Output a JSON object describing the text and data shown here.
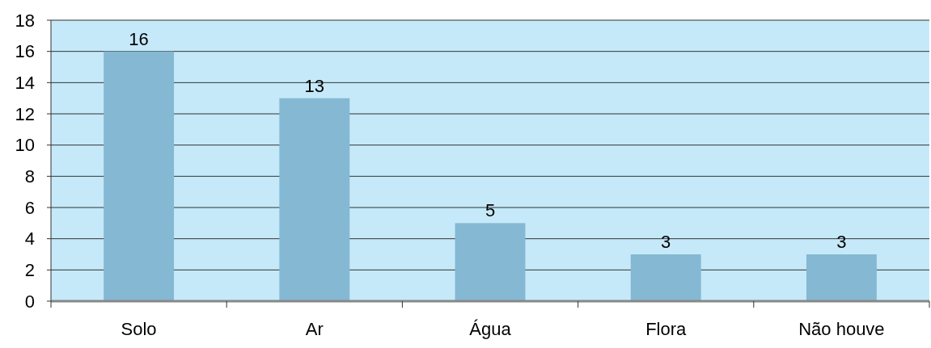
{
  "chart_data": {
    "type": "bar",
    "categories": [
      "Solo",
      "Ar",
      "Água",
      "Flora",
      "Não houve"
    ],
    "values": [
      16,
      13,
      5,
      3,
      3
    ],
    "color": "#85b8d2",
    "ylim": [
      0,
      18
    ],
    "yticks": [
      0,
      2,
      4,
      6,
      8,
      10,
      12,
      14,
      16,
      18
    ],
    "grid": "y",
    "data_labels": true
  }
}
